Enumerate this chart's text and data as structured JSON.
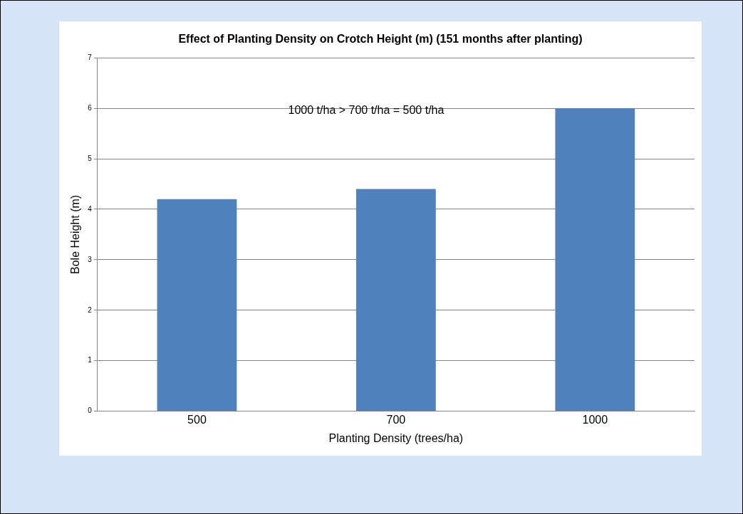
{
  "chart_data": {
    "type": "bar",
    "title": "Effect of Planting Density on Crotch Height (m) (151 months after planting)",
    "xlabel": "Planting Density (trees/ha)",
    "ylabel": "Bole Height (m)",
    "categories": [
      "500",
      "700",
      "1000"
    ],
    "series": [
      {
        "color": "#4f81bd",
        "values": [
          4.2,
          4.4,
          6.0
        ]
      }
    ],
    "ylim": [
      0,
      7
    ],
    "yticks": [
      0,
      1,
      2,
      3,
      4,
      5,
      6,
      7
    ],
    "grid": "y",
    "legend": false,
    "annotations": [
      "1000 t/ha > 700 t/ha = 500 t/ha"
    ]
  }
}
